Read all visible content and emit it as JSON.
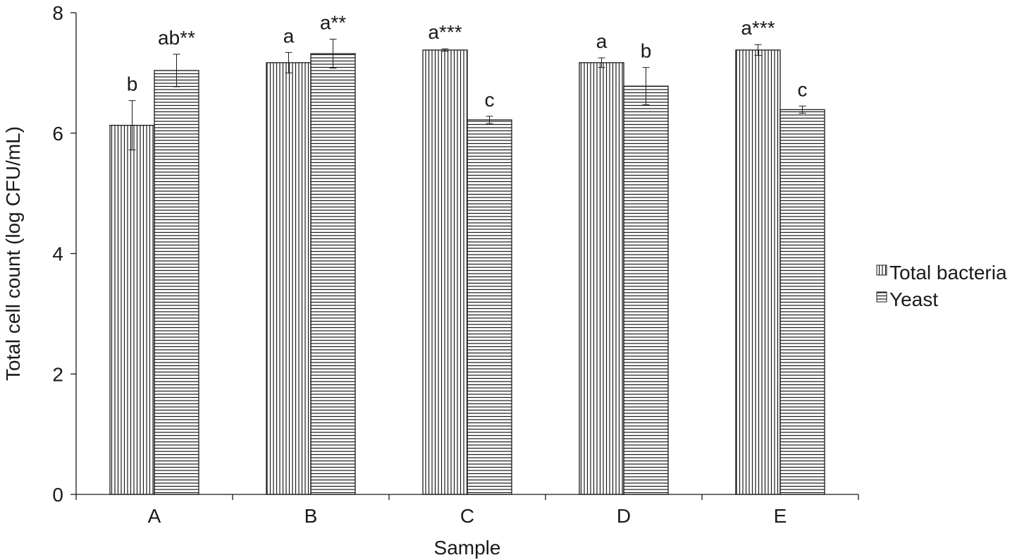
{
  "chart_data": {
    "type": "bar",
    "title": "",
    "xlabel": "Sample",
    "ylabel": "Total cell count (log CFU/mL)",
    "ylim": [
      0,
      8
    ],
    "yticks": [
      "0",
      "2",
      "4",
      "6",
      "8"
    ],
    "categories": [
      "A",
      "B",
      "C",
      "D",
      "E"
    ],
    "grid": false,
    "legend_position": "right",
    "series": [
      {
        "name": "Total bacteria",
        "pattern": "vertical-lines",
        "values": [
          6.13,
          7.17,
          7.38,
          7.17,
          7.38
        ],
        "errors": [
          0.41,
          0.17,
          0.02,
          0.08,
          0.09
        ],
        "labels": [
          "b",
          "a",
          "a***",
          "a",
          "a***"
        ]
      },
      {
        "name": "Yeast",
        "pattern": "horizontal-lines",
        "values": [
          7.04,
          7.32,
          6.22,
          6.78,
          6.39
        ],
        "errors": [
          0.27,
          0.24,
          0.06,
          0.31,
          0.06
        ],
        "labels": [
          "ab**",
          "a**",
          "c",
          "b",
          "c"
        ]
      }
    ],
    "colors": {
      "bar_stroke": "#1a1a1a",
      "bar_fill": "#ffffff",
      "text": "#1a1a1a"
    }
  }
}
